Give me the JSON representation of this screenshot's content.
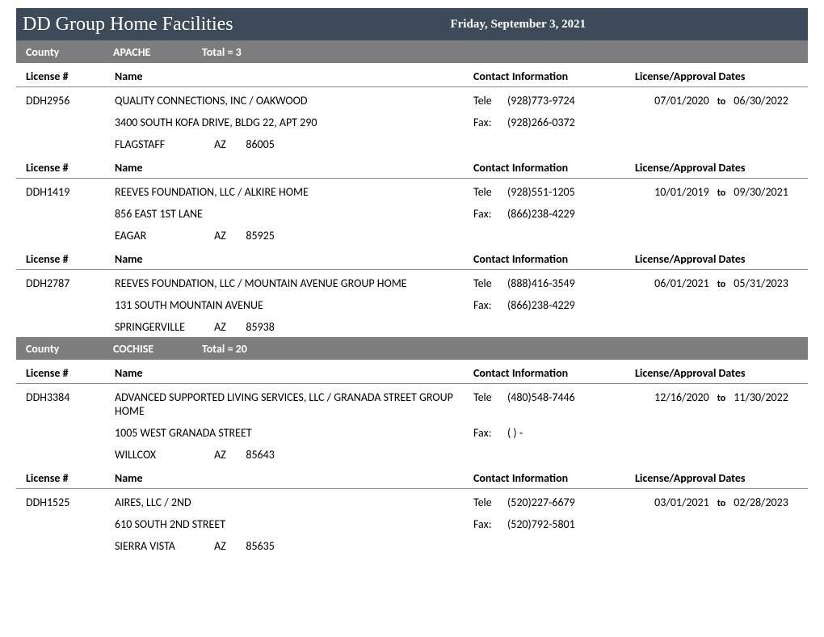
{
  "colors": {
    "title_bar_bg": "#3c4a5a",
    "county_bar_bg": "#7d7d7d",
    "rule": "#888888",
    "text": "#000000",
    "title_text": "#ffffff"
  },
  "report": {
    "title": "DD Group Home Facilities",
    "date": "Friday, September 3, 2021"
  },
  "labels": {
    "county": "County",
    "total_prefix": "Total =  ",
    "license_no": "License #",
    "name": "Name",
    "contact": "Contact Information",
    "dates": "License/Approval Dates",
    "tele": "Tele",
    "fax": "Fax:",
    "to": "to"
  },
  "counties": [
    {
      "name": "APACHE",
      "total": "3",
      "records": [
        {
          "license": "DDH2956",
          "name": "QUALITY CONNECTIONS, INC / OAKWOOD",
          "address": "3400 SOUTH KOFA DRIVE, BLDG 22, APT 290",
          "city": "FLAGSTAFF",
          "state": "AZ",
          "zip": "86005",
          "tele": "(928)773-9724",
          "fax": "(928)266-0372",
          "date_from": "07/01/2020",
          "date_to": "06/30/2022"
        },
        {
          "license": "DDH1419",
          "name": "REEVES FOUNDATION, LLC / ALKIRE HOME",
          "address": "856 EAST 1ST LANE",
          "city": "EAGAR",
          "state": "AZ",
          "zip": "85925",
          "tele": "(928)551-1205",
          "fax": "(866)238-4229",
          "date_from": "10/01/2019",
          "date_to": "09/30/2021"
        },
        {
          "license": "DDH2787",
          "name": "REEVES FOUNDATION, LLC / MOUNTAIN AVENUE GROUP HOME",
          "address": "131 SOUTH MOUNTAIN AVENUE",
          "city": "SPRINGERVILLE",
          "state": "AZ",
          "zip": "85938",
          "tele": "(888)416-3549",
          "fax": "(866)238-4229",
          "date_from": "06/01/2021",
          "date_to": "05/31/2023"
        }
      ]
    },
    {
      "name": "COCHISE",
      "total": "20",
      "records": [
        {
          "license": "DDH3384",
          "name": "ADVANCED SUPPORTED LIVING SERVICES, LLC / GRANADA STREET GROUP HOME",
          "address": "1005 WEST GRANADA STREET",
          "city": "WILLCOX",
          "state": "AZ",
          "zip": "85643",
          "tele": "(480)548-7446",
          "fax": "(   )   -",
          "date_from": "12/16/2020",
          "date_to": "11/30/2022"
        },
        {
          "license": "DDH1525",
          "name": "AIRES, LLC / 2ND",
          "address": "610 SOUTH 2ND STREET",
          "city": "SIERRA VISTA",
          "state": "AZ",
          "zip": "85635",
          "tele": "(520)227-6679",
          "fax": "(520)792-5801",
          "date_from": "03/01/2021",
          "date_to": "02/28/2023"
        }
      ]
    }
  ]
}
